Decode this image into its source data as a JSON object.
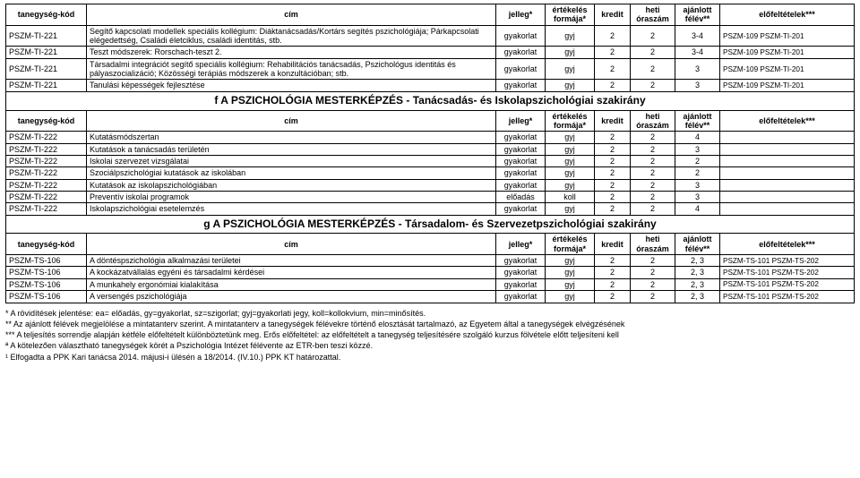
{
  "headers": {
    "kod": "tanegység-kód",
    "cim": "cím",
    "jelleg": "jelleg*",
    "forma": "értékelés formája*",
    "kredit": "kredit",
    "heti": "heti óraszám",
    "felev": "ajánlott félév**",
    "pre": "előfeltételek***"
  },
  "section_top_rows": [
    {
      "kod": "PSZM-TI-221",
      "cim": "Segítő kapcsolati modellek speciális kollégium: Diáktanácsadás/Kortárs segítés pszichológiája; Párkapcsolati elégedettség, Családi életciklus, családi identitás, stb.",
      "jelleg": "gyakorlat",
      "forma": "gyj",
      "kredit": "2",
      "heti": "2",
      "felev": "3-4",
      "pre": "PSZM-109   PSZM-TI-201"
    },
    {
      "kod": "PSZM-TI-221",
      "cim": "Teszt módszerek: Rorschach-teszt 2.",
      "jelleg": "gyakorlat",
      "forma": "gyj",
      "kredit": "2",
      "heti": "2",
      "felev": "3-4",
      "pre": "PSZM-109   PSZM-TI-201"
    },
    {
      "kod": "PSZM-TI-221",
      "cim": "Társadalmi integrációt segítő speciális kollégium: Rehabilitációs tanácsadás, Pszichológus identitás és pályaszocializáció; Közösségi terápiás módszerek a konzultációban; stb.",
      "jelleg": "gyakorlat",
      "forma": "gyj",
      "kredit": "2",
      "heti": "2",
      "felev": "3",
      "pre": "PSZM-109   PSZM-TI-201"
    },
    {
      "kod": "PSZM-TI-221",
      "cim": "Tanulási képességek fejlesztése",
      "jelleg": "gyakorlat",
      "forma": "gyj",
      "kredit": "2",
      "heti": "2",
      "felev": "3",
      "pre": "PSZM-109   PSZM-TI-201"
    }
  ],
  "section_f_title": "f A  PSZICHOLÓGIA  MESTERKÉPZÉS - Tanácsadás- és Iskolapszichológiai szakirány",
  "section_f_rows": [
    {
      "kod": "PSZM-TI-222",
      "cim": "Kutatásmódszertan",
      "jelleg": "gyakorlat",
      "forma": "gyj",
      "kredit": "2",
      "heti": "2",
      "felev": "4",
      "pre": ""
    },
    {
      "kod": "PSZM-TI-222",
      "cim": "Kutatások a tanácsadás területén",
      "jelleg": "gyakorlat",
      "forma": "gyj",
      "kredit": "2",
      "heti": "2",
      "felev": "3",
      "pre": ""
    },
    {
      "kod": "PSZM-TI-222",
      "cim": "Iskolai szervezet vizsgálatai",
      "jelleg": "gyakorlat",
      "forma": "gyj",
      "kredit": "2",
      "heti": "2",
      "felev": "2",
      "pre": ""
    },
    {
      "kod": "PSZM-TI-222",
      "cim": "Szociálpszichológiai kutatások az iskolában",
      "jelleg": "gyakorlat",
      "forma": "gyj",
      "kredit": "2",
      "heti": "2",
      "felev": "2",
      "pre": ""
    },
    {
      "kod": "PSZM-TI-222",
      "cim": "Kutatások az iskolapszichológiában",
      "jelleg": "gyakorlat",
      "forma": "gyj",
      "kredit": "2",
      "heti": "2",
      "felev": "3",
      "pre": ""
    },
    {
      "kod": "PSZM-TI-222",
      "cim": "Preventív iskolai programok",
      "jelleg": "előadás",
      "forma": "koll",
      "kredit": "2",
      "heti": "2",
      "felev": "3",
      "pre": ""
    },
    {
      "kod": "PSZM-TI-222",
      "cim": "Iskolapszichológiai esetelemzés",
      "jelleg": "gyakorlat",
      "forma": "gyj",
      "kredit": "2",
      "heti": "2",
      "felev": "4",
      "pre": ""
    }
  ],
  "section_g_title": "g A  PSZICHOLÓGIA  MESTERKÉPZÉS - Társadalom- és Szervezetpszichológiai szakirány",
  "section_g_rows": [
    {
      "kod": "PSZM-TS-106",
      "cim": "A döntéspszichológia alkalmazási területei",
      "jelleg": "gyakorlat",
      "forma": "gyj",
      "kredit": "2",
      "heti": "2",
      "felev": "2, 3",
      "pre": "PSZM-TS-101        PSZM-TS-202"
    },
    {
      "kod": "PSZM-TS-106",
      "cim": "A kockázatvállalás egyéni és társadalmi kérdései",
      "jelleg": "gyakorlat",
      "forma": "gyj",
      "kredit": "2",
      "heti": "2",
      "felev": "2, 3",
      "pre": "PSZM-TS-101        PSZM-TS-202"
    },
    {
      "kod": "PSZM-TS-106",
      "cim": "A munkahely ergonómiai kialakítása",
      "jelleg": "gyakorlat",
      "forma": "gyj",
      "kredit": "2",
      "heti": "2",
      "felev": "2, 3",
      "pre": "PSZM-TS-101        PSZM-TS-202"
    },
    {
      "kod": "PSZM-TS-106",
      "cim": "A versengés pszichológiája",
      "jelleg": "gyakorlat",
      "forma": "gyj",
      "kredit": "2",
      "heti": "2",
      "felev": "2, 3",
      "pre": "PSZM-TS-101        PSZM-TS-202"
    }
  ],
  "notes": [
    "* A rövidítések jelentése: ea= előadás, gy=gyakorlat, sz=szigorlat; gyj=gyakorlati jegy, koll=kollokvium, min=minősítés.",
    "** Az ajánlott félévek megjelölése a mintatanterv szerint. A mintatanterv a tanegységek félévekre történő elosztását tartalmazó, az Egyetem által a tanegységek elvégzésének",
    "*** A teljesítés sorrendje alapján kétféle előfeltételt különböztetünk meg. Erős előfeltétel: az előfeltételt a tanegység teljesítésére szolgáló kurzus fölvétele előtt teljesíteni kell",
    "ª A kötelezően választható tanegységek körét a Pszichológia Intézet félévente az ETR-ben teszi közzé.",
    "¹ Elfogadta a PPK Kari tanácsa 2014. májusi-i ülésén a 18/2014. (IV.10.) PPK KT határozattal."
  ]
}
